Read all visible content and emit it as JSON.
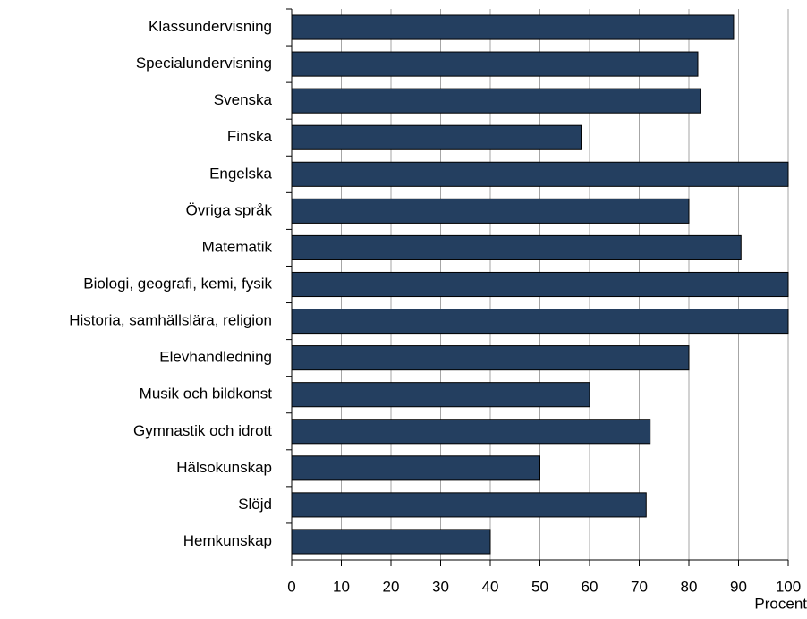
{
  "chart_data": {
    "type": "bar",
    "orientation": "horizontal",
    "x_label": "Procent",
    "categories": [
      "Klassundervisning",
      "Specialundervisning",
      "Svenska",
      "Finska",
      "Engelska",
      "Övriga språk",
      "Matematik",
      "Biologi, geografi, kemi, fysik",
      "Historia, samhällslära, religion",
      "Elevhandledning",
      "Musik och bildkonst",
      "Gymnastik och idrott",
      "Hälsokunskap",
      "Slöjd",
      "Hemkunskap"
    ],
    "values": [
      89,
      81.8,
      82.3,
      58.3,
      100,
      80,
      90.5,
      100,
      100,
      80,
      60,
      72.2,
      50,
      71.4,
      40
    ],
    "color": "#243f60",
    "xlim": [
      0,
      100
    ],
    "xticks": [
      0,
      10,
      20,
      30,
      40,
      50,
      60,
      70,
      80,
      90,
      100
    ],
    "grid": true
  }
}
